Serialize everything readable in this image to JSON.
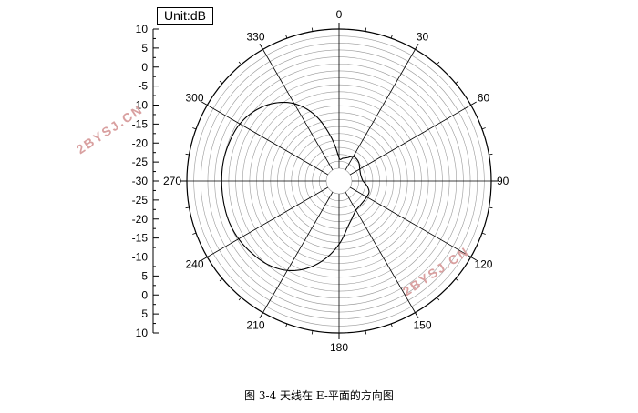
{
  "chart_data": {
    "type": "polar-line",
    "unit_label": "Unit:dB",
    "radial_tick_labels": [
      "10",
      "5",
      "0",
      "-5",
      "-10",
      "-15",
      "-20",
      "-25",
      "-30",
      "-25",
      "-20",
      "-15",
      "-10",
      "-5",
      "0",
      "5",
      "10"
    ],
    "radial_range_db": [
      -30,
      10
    ],
    "angle_labels": [
      {
        "deg": 0,
        "text": "0"
      },
      {
        "deg": 30,
        "text": "30"
      },
      {
        "deg": 60,
        "text": "60"
      },
      {
        "deg": 90,
        "text": "90"
      },
      {
        "deg": 120,
        "text": "120"
      },
      {
        "deg": 150,
        "text": "150"
      },
      {
        "deg": 180,
        "text": "180"
      },
      {
        "deg": 210,
        "text": "210"
      },
      {
        "deg": 240,
        "text": "240"
      },
      {
        "deg": 270,
        "text": "270"
      },
      {
        "deg": 300,
        "text": "300"
      },
      {
        "deg": 330,
        "text": "330"
      }
    ],
    "series": [
      {
        "points": [
          {
            "theta": 0,
            "db": -27.0
          },
          {
            "theta": 10,
            "db": -27.0
          },
          {
            "theta": 20,
            "db": -26.5
          },
          {
            "theta": 30,
            "db": -25.5
          },
          {
            "theta": 45,
            "db": -25.8
          },
          {
            "theta": 60,
            "db": -26.8
          },
          {
            "theta": 75,
            "db": -27.2
          },
          {
            "theta": 90,
            "db": -26.8
          },
          {
            "theta": 100,
            "db": -25.5
          },
          {
            "theta": 110,
            "db": -24.5
          },
          {
            "theta": 120,
            "db": -24.5
          },
          {
            "theta": 135,
            "db": -24.5
          },
          {
            "theta": 150,
            "db": -24.0
          },
          {
            "theta": 160,
            "db": -22.5
          },
          {
            "theta": 170,
            "db": -20.0
          },
          {
            "theta": 180,
            "db": -15.5
          },
          {
            "theta": 190,
            "db": -11.0
          },
          {
            "theta": 200,
            "db": -7.0
          },
          {
            "theta": 210,
            "db": -4.0
          },
          {
            "theta": 220,
            "db": -2.2
          },
          {
            "theta": 230,
            "db": -1.2
          },
          {
            "theta": 240,
            "db": -0.4
          },
          {
            "theta": 250,
            "db": 0.0
          },
          {
            "theta": 260,
            "db": 0.0
          },
          {
            "theta": 270,
            "db": 0.0
          },
          {
            "theta": 280,
            "db": 0.0
          },
          {
            "theta": 290,
            "db": -0.3
          },
          {
            "theta": 300,
            "db": -0.8
          },
          {
            "theta": 310,
            "db": -2.2
          },
          {
            "theta": 320,
            "db": -4.5
          },
          {
            "theta": 330,
            "db": -8.0
          },
          {
            "theta": 340,
            "db": -13.5
          },
          {
            "theta": 350,
            "db": -21.0
          },
          {
            "theta": 360,
            "db": -27.0
          }
        ]
      }
    ]
  },
  "watermark_text": "2BYSJ.CN",
  "caption": "图 3-4 天线在 E-平面的方向图"
}
